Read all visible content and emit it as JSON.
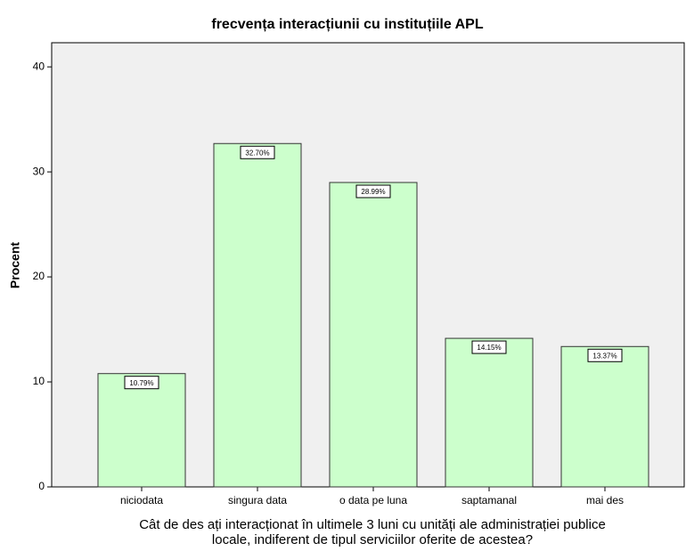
{
  "chart_data": {
    "type": "bar",
    "title": "frecvența interacțiunii cu instituțiile APL",
    "y_label": "Procent",
    "x_label": [
      "Cât de des ați interacționat în ultimele 3 luni cu unități ale administrației publice",
      "locale, indiferent de tipul serviciilor oferite de acestea?"
    ],
    "categories": [
      "niciodata",
      "singura data",
      "o data pe luna",
      "saptamanal",
      "mai des"
    ],
    "values": [
      10.79,
      32.7,
      28.99,
      14.15,
      13.37
    ],
    "value_labels": [
      "10.79%",
      "32.70%",
      "28.99%",
      "14.15%",
      "13.37%"
    ],
    "color": "#ccffcc",
    "ylim": [
      0,
      42.3
    ],
    "yticks": [
      0,
      10,
      20,
      30,
      40
    ],
    "grid": false
  }
}
